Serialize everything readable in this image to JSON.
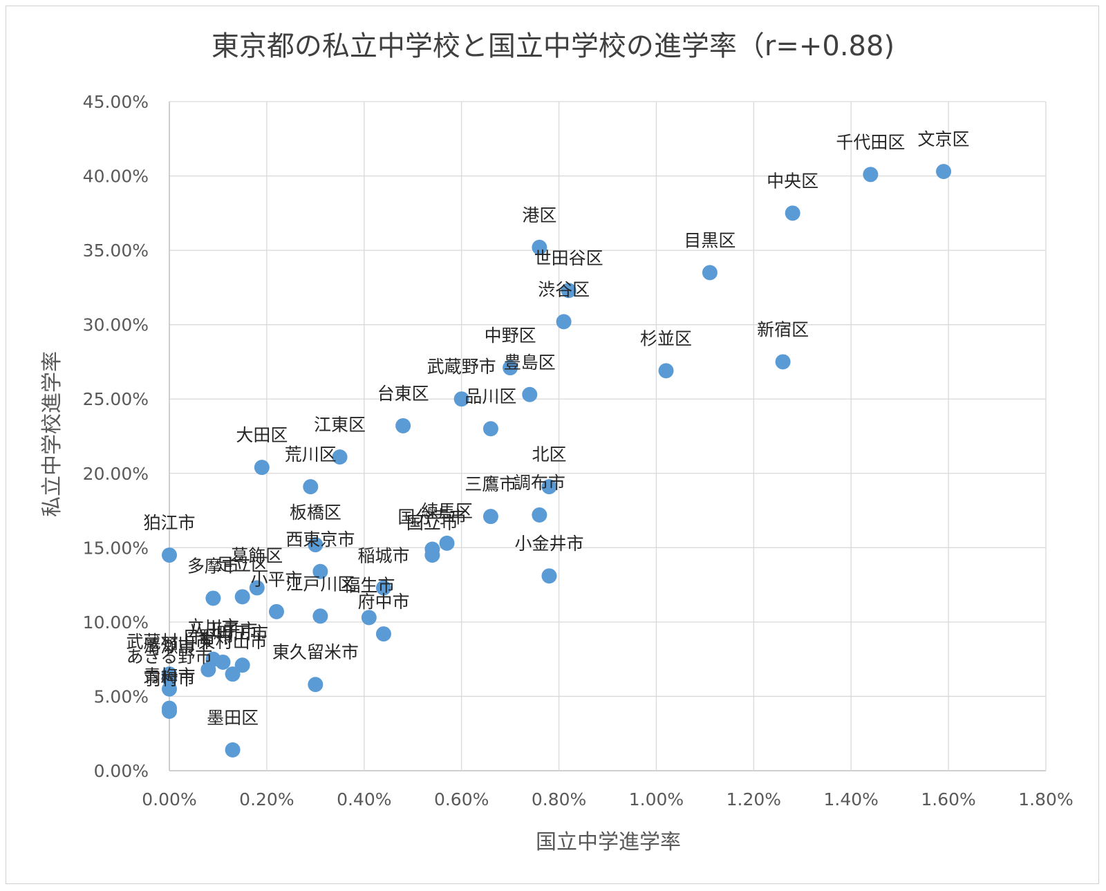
{
  "chart_data": {
    "type": "scatter",
    "title": "東京都の私立中学校と国立中学校の進学率（r=+0.88)",
    "xlabel": "国立中学進学率",
    "ylabel": "私立中学校進学率",
    "xlim": [
      0,
      0.018
    ],
    "ylim": [
      0,
      0.45
    ],
    "x_ticks": [
      "0.00%",
      "0.20%",
      "0.40%",
      "0.60%",
      "0.80%",
      "1.00%",
      "1.20%",
      "1.40%",
      "1.60%",
      "1.80%"
    ],
    "y_ticks": [
      "0.00%",
      "5.00%",
      "10.00%",
      "15.00%",
      "20.00%",
      "25.00%",
      "30.00%",
      "35.00%",
      "40.00%",
      "45.00%"
    ],
    "grid": true,
    "legend": "none",
    "point_color": "#5b9bd5",
    "points": [
      {
        "label": "千代田区",
        "x": 0.0144,
        "y": 0.401
      },
      {
        "label": "文京区",
        "x": 0.0159,
        "y": 0.403
      },
      {
        "label": "中央区",
        "x": 0.0128,
        "y": 0.375
      },
      {
        "label": "港区",
        "x": 0.0076,
        "y": 0.352
      },
      {
        "label": "目黒区",
        "x": 0.0111,
        "y": 0.335
      },
      {
        "label": "世田谷区",
        "x": 0.0082,
        "y": 0.323
      },
      {
        "label": "渋谷区",
        "x": 0.0081,
        "y": 0.302
      },
      {
        "label": "新宿区",
        "x": 0.0126,
        "y": 0.275
      },
      {
        "label": "杉並区",
        "x": 0.0102,
        "y": 0.269
      },
      {
        "label": "中野区",
        "x": 0.007,
        "y": 0.271
      },
      {
        "label": "豊島区",
        "x": 0.0074,
        "y": 0.253
      },
      {
        "label": "武蔵野市",
        "x": 0.006,
        "y": 0.25
      },
      {
        "label": "品川区",
        "x": 0.0066,
        "y": 0.23
      },
      {
        "label": "台東区",
        "x": 0.0048,
        "y": 0.232
      },
      {
        "label": "江東区",
        "x": 0.0035,
        "y": 0.211
      },
      {
        "label": "大田区",
        "x": 0.0019,
        "y": 0.204
      },
      {
        "label": "荒川区",
        "x": 0.0029,
        "y": 0.191
      },
      {
        "label": "北区",
        "x": 0.0078,
        "y": 0.191
      },
      {
        "label": "調布市",
        "x": 0.0076,
        "y": 0.172
      },
      {
        "label": "三鷹市",
        "x": 0.0066,
        "y": 0.171
      },
      {
        "label": "練馬区",
        "x": 0.0057,
        "y": 0.153
      },
      {
        "label": "国分寺市",
        "x": 0.0054,
        "y": 0.149
      },
      {
        "label": "国立市",
        "x": 0.0054,
        "y": 0.145
      },
      {
        "label": "小金井市",
        "x": 0.0078,
        "y": 0.131
      },
      {
        "label": "板橋区",
        "x": 0.003,
        "y": 0.152
      },
      {
        "label": "西東京市",
        "x": 0.0031,
        "y": 0.134
      },
      {
        "label": "稲城市",
        "x": 0.0044,
        "y": 0.123
      },
      {
        "label": "小平市",
        "x": 0.0022,
        "y": 0.107
      },
      {
        "label": "江戸川区",
        "x": 0.0031,
        "y": 0.104
      },
      {
        "label": "福生市",
        "x": 0.0041,
        "y": 0.103
      },
      {
        "label": "狛江市",
        "x": 0.0,
        "y": 0.145
      },
      {
        "label": "葛飾区",
        "x": 0.0018,
        "y": 0.123
      },
      {
        "label": "足立区",
        "x": 0.0015,
        "y": 0.117
      },
      {
        "label": "多摩市",
        "x": 0.0009,
        "y": 0.116
      },
      {
        "label": "府中市",
        "x": 0.0044,
        "y": 0.092
      },
      {
        "label": "立川市",
        "x": 0.0009,
        "y": 0.075
      },
      {
        "label": "八王子市",
        "x": 0.0011,
        "y": 0.073
      },
      {
        "label": "町田市",
        "x": 0.0015,
        "y": 0.071
      },
      {
        "label": "日野市",
        "x": 0.0008,
        "y": 0.068
      },
      {
        "label": "東久留米市",
        "x": 0.003,
        "y": 0.058
      },
      {
        "label": "東村山市",
        "x": 0.0013,
        "y": 0.065
      },
      {
        "label": "清瀬市",
        "x": 0.0,
        "y": 0.062
      },
      {
        "label": "武蔵村山市",
        "x": 0.0,
        "y": 0.065
      },
      {
        "label": "あきる野市",
        "x": 0.0,
        "y": 0.055
      },
      {
        "label": "青梅市",
        "x": 0.0,
        "y": 0.042
      },
      {
        "label": "羽村市",
        "x": 0.0,
        "y": 0.04
      },
      {
        "label": "墨田区",
        "x": 0.0013,
        "y": 0.014
      }
    ]
  }
}
